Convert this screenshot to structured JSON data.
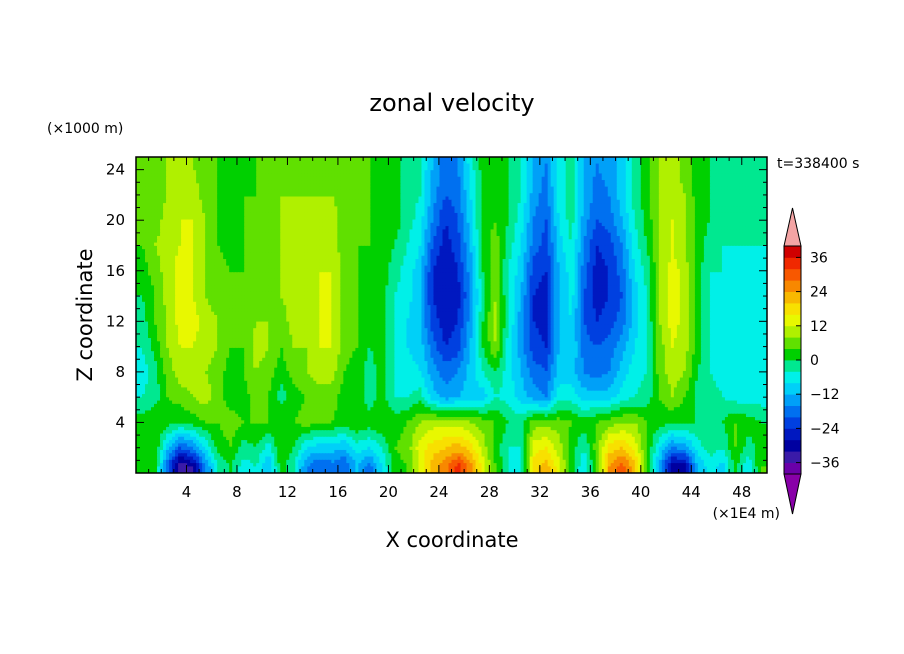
{
  "chart_data": {
    "type": "heatmap",
    "title": "zonal velocity",
    "xlabel": "X coordinate",
    "ylabel": "Z coordinate",
    "x_unit_label": "(×1E4 m)",
    "z_unit_label": "(×1000 m)",
    "time_label": "t=338400 s",
    "xlim": [
      0,
      50
    ],
    "ylim": [
      0,
      25
    ],
    "x_ticks": [
      4,
      8,
      12,
      16,
      20,
      24,
      28,
      32,
      36,
      40,
      44,
      48
    ],
    "x_tick_labels": [
      "4",
      "8",
      "12",
      "16",
      "20",
      "24",
      "28",
      "32",
      "36",
      "40",
      "44",
      "48"
    ],
    "z_ticks": [
      4,
      8,
      12,
      16,
      20,
      24
    ],
    "z_tick_labels": [
      "4",
      "8",
      "12",
      "16",
      "20",
      "24"
    ],
    "x_columns": [
      0.5,
      1.5,
      2.5,
      3.5,
      4.5,
      5.5,
      6.5,
      7.5,
      8.5,
      9.5,
      10.5,
      11.5,
      12.5,
      13.5,
      14.5,
      15.5,
      16.5,
      17.5,
      18.5,
      19.5,
      20.5,
      21.5,
      22.5,
      23.5,
      24.5,
      25.5,
      26.5,
      27.5,
      28.5,
      29.5,
      30.5,
      31.5,
      32.5,
      33.5,
      34.5,
      35.5,
      36.5,
      37.5,
      38.5,
      39.5,
      40.5,
      41.5,
      42.5,
      43.5,
      44.5,
      45.5,
      46.5,
      47.5,
      48.5,
      49.5
    ],
    "z_rows": [
      0.5,
      2,
      4,
      6,
      8,
      10,
      12,
      14,
      16,
      18,
      20,
      22,
      24.5
    ],
    "values": [
      [
        2,
        2,
        -20,
        -36,
        -32,
        -16,
        -4,
        0,
        -6,
        -4,
        -12,
        2,
        -4,
        -16,
        -20,
        -18,
        -20,
        -12,
        -18,
        -8,
        2,
        4,
        14,
        22,
        26,
        34,
        26,
        14,
        4,
        -4,
        -6,
        18,
        22,
        14,
        2,
        -8,
        4,
        24,
        30,
        22,
        4,
        -14,
        -32,
        -30,
        -12,
        -6,
        -10,
        2,
        -8,
        4
      ],
      [
        4,
        4,
        -10,
        -20,
        -16,
        -8,
        2,
        4,
        -2,
        0,
        -6,
        4,
        0,
        -8,
        -10,
        -10,
        -12,
        -6,
        -8,
        -4,
        4,
        6,
        14,
        18,
        20,
        22,
        18,
        10,
        2,
        -4,
        -4,
        14,
        16,
        10,
        2,
        -4,
        6,
        18,
        20,
        14,
        4,
        -8,
        -16,
        -14,
        -6,
        -2,
        -4,
        4,
        -2,
        2
      ],
      [
        2,
        4,
        2,
        0,
        2,
        4,
        4,
        6,
        4,
        4,
        4,
        4,
        4,
        6,
        4,
        4,
        2,
        4,
        2,
        4,
        2,
        4,
        8,
        10,
        10,
        10,
        8,
        6,
        4,
        0,
        -2,
        6,
        6,
        6,
        4,
        2,
        4,
        6,
        8,
        8,
        4,
        2,
        0,
        0,
        0,
        0,
        0,
        4,
        2,
        0
      ],
      [
        -4,
        -2,
        4,
        6,
        8,
        10,
        6,
        2,
        2,
        6,
        4,
        -2,
        2,
        4,
        6,
        6,
        2,
        2,
        -2,
        2,
        -4,
        -4,
        -2,
        -10,
        -14,
        -12,
        -10,
        -10,
        -4,
        -6,
        -10,
        -14,
        -16,
        -6,
        -6,
        -10,
        -10,
        -10,
        -6,
        -4,
        -2,
        4,
        8,
        4,
        -2,
        -2,
        -4,
        -6,
        -6,
        -6
      ],
      [
        -6,
        -2,
        6,
        10,
        10,
        8,
        6,
        2,
        4,
        8,
        6,
        2,
        6,
        8,
        10,
        10,
        4,
        2,
        -2,
        2,
        -4,
        -6,
        -8,
        -14,
        -18,
        -16,
        -10,
        -4,
        0,
        -6,
        -12,
        -18,
        -20,
        -10,
        -10,
        -16,
        -18,
        -16,
        -10,
        -6,
        -4,
        6,
        10,
        8,
        0,
        -4,
        -6,
        -8,
        -8,
        -8
      ],
      [
        -4,
        2,
        8,
        12,
        12,
        10,
        8,
        4,
        4,
        10,
        8,
        4,
        8,
        8,
        12,
        12,
        6,
        4,
        0,
        2,
        -4,
        -8,
        -10,
        -18,
        -24,
        -22,
        -12,
        0,
        8,
        -6,
        -14,
        -22,
        -24,
        -12,
        -8,
        -18,
        -20,
        -18,
        -14,
        -8,
        -4,
        6,
        12,
        10,
        2,
        -4,
        -6,
        -8,
        -8,
        -8
      ],
      [
        -2,
        4,
        8,
        14,
        14,
        10,
        8,
        4,
        4,
        8,
        8,
        6,
        10,
        10,
        12,
        12,
        6,
        4,
        2,
        2,
        -4,
        -8,
        -12,
        -22,
        -26,
        -24,
        -14,
        0,
        10,
        -4,
        -14,
        -24,
        -26,
        -12,
        -8,
        -20,
        -24,
        -22,
        -18,
        -10,
        -4,
        8,
        14,
        10,
        2,
        -4,
        -6,
        -8,
        -8,
        -8
      ],
      [
        0,
        4,
        10,
        14,
        12,
        8,
        6,
        4,
        4,
        6,
        6,
        8,
        10,
        10,
        12,
        12,
        6,
        4,
        2,
        2,
        -4,
        -6,
        -12,
        -24,
        -28,
        -26,
        -16,
        -2,
        8,
        -4,
        -12,
        -24,
        -26,
        -12,
        -6,
        -20,
        -26,
        -24,
        -20,
        -10,
        -4,
        8,
        14,
        10,
        2,
        -4,
        -6,
        -6,
        -8,
        -8
      ],
      [
        2,
        6,
        10,
        14,
        12,
        8,
        6,
        4,
        4,
        6,
        6,
        8,
        10,
        10,
        12,
        12,
        6,
        4,
        2,
        2,
        -2,
        -6,
        -10,
        -24,
        -28,
        -24,
        -14,
        0,
        6,
        -4,
        -10,
        -22,
        -24,
        -12,
        -6,
        -18,
        -26,
        -24,
        -18,
        -8,
        -2,
        8,
        14,
        10,
        2,
        -4,
        -4,
        -6,
        -6,
        -6
      ],
      [
        4,
        8,
        10,
        12,
        12,
        8,
        4,
        2,
        4,
        4,
        6,
        8,
        10,
        10,
        12,
        10,
        6,
        4,
        4,
        2,
        0,
        -4,
        -8,
        -20,
        -26,
        -22,
        -12,
        2,
        6,
        -2,
        -8,
        -18,
        -22,
        -10,
        -4,
        -16,
        -24,
        -22,
        -16,
        -6,
        0,
        8,
        12,
        8,
        2,
        -2,
        -4,
        -4,
        -4,
        -4
      ],
      [
        4,
        6,
        10,
        12,
        12,
        8,
        4,
        2,
        4,
        4,
        6,
        8,
        10,
        10,
        10,
        10,
        6,
        4,
        4,
        2,
        2,
        -2,
        -6,
        -16,
        -24,
        -20,
        -10,
        2,
        4,
        0,
        -6,
        -16,
        -20,
        -8,
        -2,
        -14,
        -20,
        -18,
        -12,
        -4,
        2,
        8,
        12,
        8,
        2,
        0,
        -2,
        -2,
        -2,
        -2
      ],
      [
        4,
        6,
        8,
        10,
        10,
        6,
        4,
        2,
        4,
        4,
        6,
        8,
        8,
        8,
        8,
        8,
        6,
        4,
        4,
        2,
        2,
        -2,
        -4,
        -14,
        -20,
        -18,
        -8,
        2,
        4,
        0,
        -4,
        -14,
        -18,
        -6,
        -2,
        -12,
        -18,
        -16,
        -10,
        -2,
        2,
        8,
        10,
        8,
        2,
        0,
        -2,
        -2,
        -2,
        -2
      ],
      [
        4,
        6,
        8,
        10,
        8,
        6,
        4,
        2,
        2,
        4,
        4,
        6,
        6,
        6,
        6,
        6,
        4,
        4,
        4,
        2,
        2,
        -2,
        -4,
        -12,
        -18,
        -16,
        -6,
        2,
        2,
        0,
        -4,
        -12,
        -16,
        -6,
        -2,
        -12,
        -16,
        -14,
        -10,
        -2,
        2,
        8,
        10,
        6,
        2,
        0,
        -2,
        -2,
        -2,
        -2
      ]
    ],
    "colorbar": {
      "levels": [
        -40,
        -36,
        -32,
        -28,
        -24,
        -20,
        -16,
        -12,
        -8,
        -4,
        0,
        4,
        8,
        12,
        16,
        20,
        24,
        28,
        32,
        36,
        40
      ],
      "colors": [
        "#6a00a8",
        "#3a1aa8",
        "#0000a0",
        "#0018c0",
        "#0040e0",
        "#0070f0",
        "#00a0f8",
        "#00d0f8",
        "#00f0e8",
        "#00e890",
        "#00d000",
        "#60e000",
        "#b0f000",
        "#e8f800",
        "#f8e000",
        "#f8b800",
        "#f88800",
        "#f85800",
        "#f02800",
        "#d00000"
      ],
      "under_color": "#8800a8",
      "over_color": "#f4a4a4",
      "tick_values": [
        -36,
        -24,
        -12,
        0,
        12,
        24,
        36
      ],
      "tick_labels": [
        "−36",
        "−24",
        "−12",
        "0",
        "12",
        "24",
        "36"
      ]
    }
  }
}
